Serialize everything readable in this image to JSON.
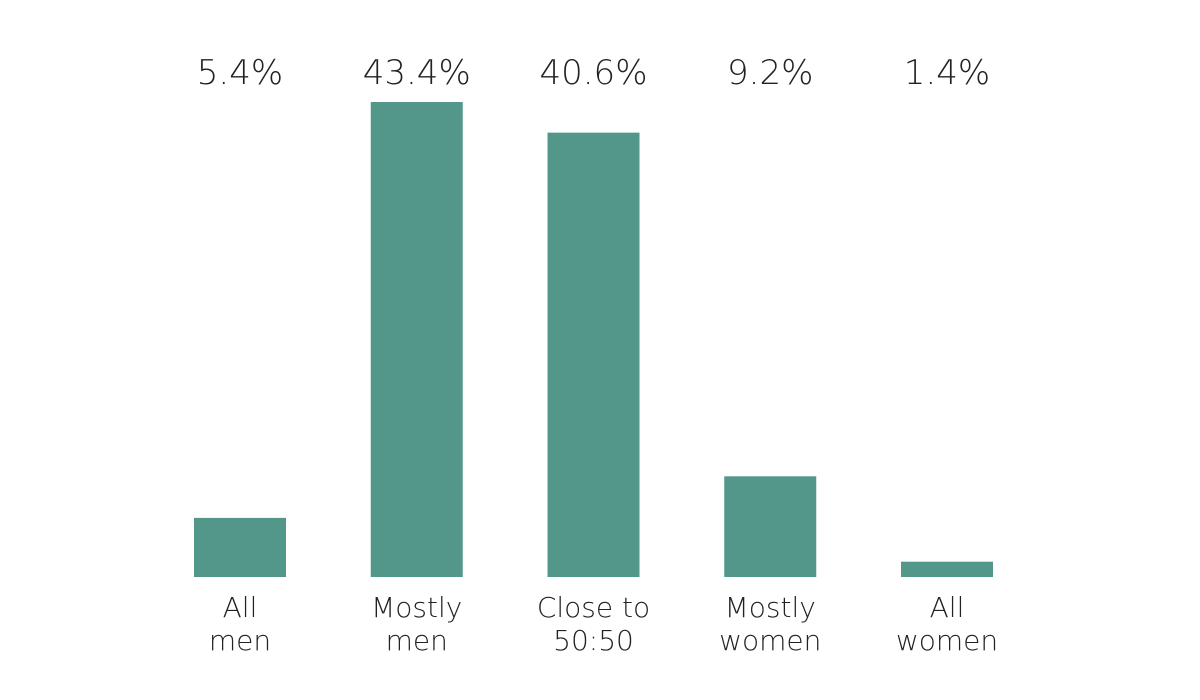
{
  "chart_data": {
    "type": "bar",
    "categories": [
      [
        "All",
        "men"
      ],
      [
        "Mostly",
        "men"
      ],
      [
        "Close to",
        "50:50"
      ],
      [
        "Mostly",
        "women"
      ],
      [
        "All",
        "women"
      ]
    ],
    "values": [
      5.4,
      43.4,
      40.6,
      9.2,
      1.4
    ],
    "value_labels": [
      "5.4%",
      "43.4%",
      "40.6%",
      "9.2%",
      "1.4%"
    ],
    "unit": "%",
    "ylim": [
      0,
      43.4
    ],
    "grid": false,
    "legend": "none",
    "bar_color": "#53978b"
  }
}
